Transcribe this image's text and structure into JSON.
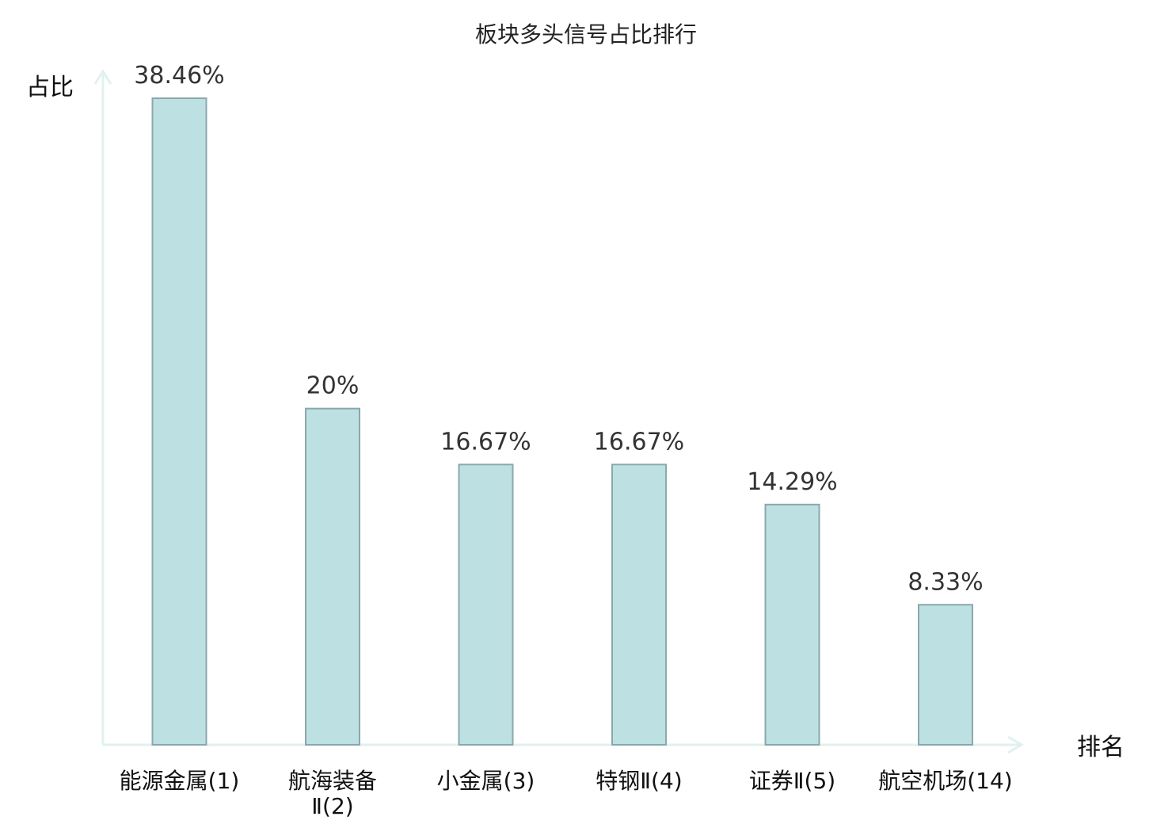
{
  "chart_data": {
    "type": "bar",
    "title": "板块多头信号占比排行",
    "ylabel": "占比",
    "xlabel": "排名",
    "categories": [
      "能源金属(1)",
      "航海装备Ⅱ(2)",
      "小金属(3)",
      "特钢Ⅱ(4)",
      "证券Ⅱ(5)",
      "航空机场(14)"
    ],
    "category_lines": [
      [
        "能源金属(1)"
      ],
      [
        "航海装备",
        "Ⅱ(2)"
      ],
      [
        "小金属(3)"
      ],
      [
        "特钢Ⅱ(4)"
      ],
      [
        "证券Ⅱ(5)"
      ],
      [
        "航空机场(14)"
      ]
    ],
    "values": [
      38.46,
      20,
      16.67,
      16.67,
      14.29,
      8.33
    ],
    "value_labels": [
      "38.46%",
      "20%",
      "16.67%",
      "16.67%",
      "14.29%",
      "8.33%"
    ],
    "highlight_index": 5,
    "ylim": [
      0,
      40
    ],
    "grid": false,
    "legend": "none",
    "colors": {
      "bar_fill": "#bde0e3",
      "bar_stroke": "#8aa8ab",
      "axis": "#e0f1ef",
      "highlight_text": "#e0191f"
    }
  }
}
